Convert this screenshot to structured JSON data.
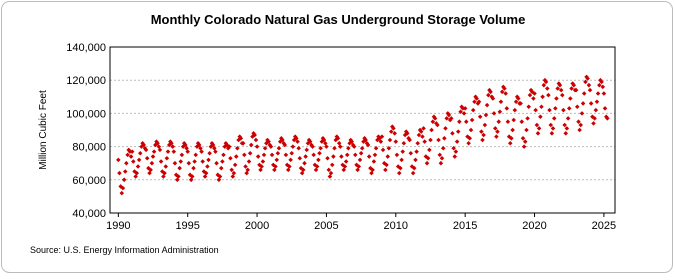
{
  "chart_data": {
    "type": "scatter",
    "title": "Monthly Colorado Natural Gas Underground Storage Volume",
    "y_label": "Million Cubic Feet",
    "source": "Source: U.S. Energy Information Administration",
    "color": "#cc0000",
    "grid": true,
    "xlim": [
      1989.4,
      2025.8
    ],
    "xticks": [
      1990,
      1995,
      2000,
      2005,
      2010,
      2015,
      2020,
      2025
    ],
    "ylim": [
      40000,
      140000
    ],
    "yticks": [
      {
        "value": 40000,
        "label": "40,000"
      },
      {
        "value": 60000,
        "label": "60,000"
      },
      {
        "value": 80000,
        "label": "80,000"
      },
      {
        "value": 100000,
        "label": "100,000"
      },
      {
        "value": 120000,
        "label": "120,000"
      },
      {
        "value": 140000,
        "label": "140,000"
      }
    ],
    "x": [
      1990,
      1990.08,
      1990.17,
      1990.25,
      1990.33,
      1990.42,
      1990.5,
      1990.58,
      1990.67,
      1990.75,
      1990.83,
      1990.92,
      1991,
      1991.08,
      1991.17,
      1991.25,
      1991.33,
      1991.42,
      1991.5,
      1991.58,
      1991.67,
      1991.75,
      1991.83,
      1991.92,
      1992,
      1992.08,
      1992.17,
      1992.25,
      1992.33,
      1992.42,
      1992.5,
      1992.58,
      1992.67,
      1992.75,
      1992.83,
      1992.92,
      1993,
      1993.08,
      1993.17,
      1993.25,
      1993.33,
      1993.42,
      1993.5,
      1993.58,
      1993.67,
      1993.75,
      1993.83,
      1993.92,
      1994,
      1994.08,
      1994.17,
      1994.25,
      1994.33,
      1994.42,
      1994.5,
      1994.58,
      1994.67,
      1994.75,
      1994.83,
      1994.92,
      1995,
      1995.08,
      1995.17,
      1995.25,
      1995.33,
      1995.42,
      1995.5,
      1995.58,
      1995.67,
      1995.75,
      1995.83,
      1995.92,
      1996,
      1996.08,
      1996.17,
      1996.25,
      1996.33,
      1996.42,
      1996.5,
      1996.58,
      1996.67,
      1996.75,
      1996.83,
      1996.92,
      1997,
      1997.08,
      1997.17,
      1997.25,
      1997.33,
      1997.42,
      1997.5,
      1997.58,
      1997.67,
      1997.75,
      1997.83,
      1997.92,
      1998,
      1998.08,
      1998.17,
      1998.25,
      1998.33,
      1998.42,
      1998.5,
      1998.58,
      1998.67,
      1998.75,
      1998.83,
      1998.92,
      1999,
      1999.08,
      1999.17,
      1999.25,
      1999.33,
      1999.42,
      1999.5,
      1999.58,
      1999.67,
      1999.75,
      1999.83,
      1999.92,
      2000,
      2000.08,
      2000.17,
      2000.25,
      2000.33,
      2000.42,
      2000.5,
      2000.58,
      2000.67,
      2000.75,
      2000.83,
      2000.92,
      2001,
      2001.08,
      2001.17,
      2001.25,
      2001.33,
      2001.42,
      2001.5,
      2001.58,
      2001.67,
      2001.75,
      2001.83,
      2001.92,
      2002,
      2002.08,
      2002.17,
      2002.25,
      2002.33,
      2002.42,
      2002.5,
      2002.58,
      2002.67,
      2002.75,
      2002.83,
      2002.92,
      2003,
      2003.08,
      2003.17,
      2003.25,
      2003.33,
      2003.42,
      2003.5,
      2003.58,
      2003.67,
      2003.75,
      2003.83,
      2003.92,
      2004,
      2004.08,
      2004.17,
      2004.25,
      2004.33,
      2004.42,
      2004.5,
      2004.58,
      2004.67,
      2004.75,
      2004.83,
      2004.92,
      2005,
      2005.08,
      2005.17,
      2005.25,
      2005.33,
      2005.42,
      2005.5,
      2005.58,
      2005.67,
      2005.75,
      2005.83,
      2005.92,
      2006,
      2006.08,
      2006.17,
      2006.25,
      2006.33,
      2006.42,
      2006.5,
      2006.58,
      2006.67,
      2006.75,
      2006.83,
      2006.92,
      2007,
      2007.08,
      2007.17,
      2007.25,
      2007.33,
      2007.42,
      2007.5,
      2007.58,
      2007.67,
      2007.75,
      2007.83,
      2007.92,
      2008,
      2008.08,
      2008.17,
      2008.25,
      2008.33,
      2008.42,
      2008.5,
      2008.58,
      2008.67,
      2008.75,
      2008.83,
      2008.92,
      2009,
      2009.08,
      2009.17,
      2009.25,
      2009.33,
      2009.42,
      2009.5,
      2009.58,
      2009.67,
      2009.75,
      2009.83,
      2009.92,
      2010,
      2010.08,
      2010.17,
      2010.25,
      2010.33,
      2010.42,
      2010.5,
      2010.58,
      2010.67,
      2010.75,
      2010.83,
      2010.92,
      2011,
      2011.08,
      2011.17,
      2011.25,
      2011.33,
      2011.42,
      2011.5,
      2011.58,
      2011.67,
      2011.75,
      2011.83,
      2011.92,
      2012,
      2012.08,
      2012.17,
      2012.25,
      2012.33,
      2012.42,
      2012.5,
      2012.58,
      2012.67,
      2012.75,
      2012.83,
      2012.92,
      2013,
      2013.08,
      2013.17,
      2013.25,
      2013.33,
      2013.42,
      2013.5,
      2013.58,
      2013.67,
      2013.75,
      2013.83,
      2013.92,
      2014,
      2014.08,
      2014.17,
      2014.25,
      2014.33,
      2014.42,
      2014.5,
      2014.58,
      2014.67,
      2014.75,
      2014.83,
      2014.92,
      2015,
      2015.08,
      2015.17,
      2015.25,
      2015.33,
      2015.42,
      2015.5,
      2015.58,
      2015.67,
      2015.75,
      2015.83,
      2015.92,
      2016,
      2016.08,
      2016.17,
      2016.25,
      2016.33,
      2016.42,
      2016.5,
      2016.58,
      2016.67,
      2016.75,
      2016.83,
      2016.92,
      2017,
      2017.08,
      2017.17,
      2017.25,
      2017.33,
      2017.42,
      2017.5,
      2017.58,
      2017.67,
      2017.75,
      2017.83,
      2017.92,
      2018,
      2018.08,
      2018.17,
      2018.25,
      2018.33,
      2018.42,
      2018.5,
      2018.58,
      2018.67,
      2018.75,
      2018.83,
      2018.92,
      2019,
      2019.08,
      2019.17,
      2019.25,
      2019.33,
      2019.42,
      2019.5,
      2019.58,
      2019.67,
      2019.75,
      2019.83,
      2019.92,
      2020,
      2020.08,
      2020.17,
      2020.25,
      2020.33,
      2020.42,
      2020.5,
      2020.58,
      2020.67,
      2020.75,
      2020.83,
      2020.92,
      2021,
      2021.08,
      2021.17,
      2021.25,
      2021.33,
      2021.42,
      2021.5,
      2021.58,
      2021.67,
      2021.75,
      2021.83,
      2021.92,
      2022,
      2022.08,
      2022.17,
      2022.25,
      2022.33,
      2022.42,
      2022.5,
      2022.58,
      2022.67,
      2022.75,
      2022.83,
      2022.92,
      2023,
      2023.08,
      2023.17,
      2023.25,
      2023.33,
      2023.42,
      2023.5,
      2023.58,
      2023.67,
      2023.75,
      2023.83,
      2023.92,
      2024,
      2024.08,
      2024.17,
      2024.25,
      2024.33,
      2024.42,
      2024.5,
      2024.58,
      2024.67,
      2024.75,
      2024.83,
      2024.92,
      2025,
      2025.08,
      2025.17,
      2025.25
    ],
    "values": [
      72000,
      64000,
      56000,
      52000,
      55000,
      60000,
      65000,
      70000,
      75000,
      78000,
      77000,
      74000,
      77000,
      71000,
      65000,
      62000,
      64000,
      68000,
      72000,
      76000,
      80000,
      82000,
      81000,
      79000,
      78000,
      73000,
      67000,
      64000,
      66000,
      70000,
      74000,
      77000,
      81000,
      83000,
      82000,
      80000,
      78000,
      71000,
      65000,
      62000,
      64000,
      68000,
      73000,
      77000,
      81000,
      83000,
      82000,
      80000,
      77000,
      70000,
      63000,
      60000,
      62000,
      67000,
      71000,
      75000,
      80000,
      82000,
      81000,
      79000,
      77000,
      70000,
      63000,
      60000,
      62000,
      67000,
      71000,
      75000,
      80000,
      82000,
      81000,
      79000,
      77000,
      71000,
      65000,
      62000,
      64000,
      68000,
      72000,
      76000,
      80000,
      82000,
      81000,
      79000,
      77000,
      70000,
      63000,
      60000,
      62000,
      67000,
      71000,
      75000,
      80000,
      82000,
      81000,
      79000,
      80000,
      73000,
      66000,
      62000,
      64000,
      69000,
      74000,
      79000,
      84000,
      86000,
      85000,
      82000,
      82000,
      75000,
      68000,
      64000,
      66000,
      71000,
      76000,
      81000,
      86000,
      88000,
      87000,
      84000,
      80000,
      74000,
      69000,
      66000,
      68000,
      71000,
      75000,
      79000,
      82000,
      84000,
      83000,
      81000,
      80000,
      75000,
      69000,
      66000,
      68000,
      72000,
      76000,
      79000,
      83000,
      85000,
      84000,
      82000,
      81000,
      75000,
      69000,
      66000,
      68000,
      72000,
      76000,
      80000,
      84000,
      86000,
      85000,
      83000,
      79000,
      73000,
      67000,
      64000,
      66000,
      70000,
      74000,
      78000,
      82000,
      84000,
      83000,
      81000,
      80000,
      75000,
      69000,
      66000,
      68000,
      72000,
      76000,
      79000,
      83000,
      85000,
      84000,
      82000,
      80000,
      73000,
      66000,
      62000,
      64000,
      69000,
      74000,
      79000,
      84000,
      86000,
      85000,
      82000,
      80000,
      74000,
      69000,
      66000,
      68000,
      71000,
      75000,
      79000,
      82000,
      84000,
      83000,
      81000,
      80000,
      75000,
      69000,
      66000,
      68000,
      72000,
      76000,
      79000,
      83000,
      85000,
      84000,
      82000,
      81000,
      74000,
      67000,
      64000,
      66000,
      71000,
      75000,
      79000,
      84000,
      86000,
      85000,
      83000,
      86000,
      78000,
      70000,
      66000,
      69000,
      74000,
      79000,
      84000,
      89000,
      92000,
      91000,
      88000,
      83000,
      75000,
      68000,
      64000,
      67000,
      72000,
      77000,
      82000,
      87000,
      89000,
      88000,
      85000,
      84000,
      76000,
      68000,
      64000,
      67000,
      72000,
      77000,
      82000,
      87000,
      90000,
      89000,
      86000,
      91000,
      83000,
      74000,
      70000,
      73000,
      78000,
      84000,
      90000,
      95000,
      98000,
      97000,
      94000,
      93000,
      84000,
      75000,
      70000,
      73000,
      79000,
      85000,
      91000,
      97000,
      100000,
      99000,
      96000,
      97000,
      88000,
      79000,
      74000,
      77000,
      83000,
      89000,
      95000,
      101000,
      104000,
      103000,
      100000,
      103000,
      95000,
      86000,
      82000,
      85000,
      90000,
      96000,
      102000,
      107000,
      110000,
      109000,
      106000,
      107000,
      98000,
      89000,
      84000,
      87000,
      93000,
      99000,
      105000,
      111000,
      114000,
      113000,
      110000,
      109000,
      100000,
      91000,
      86000,
      89000,
      95000,
      101000,
      107000,
      113000,
      116000,
      115000,
      112000,
      103000,
      95000,
      86000,
      82000,
      85000,
      90000,
      96000,
      102000,
      107000,
      110000,
      109000,
      106000,
      106000,
      95000,
      85000,
      80000,
      83000,
      90000,
      97000,
      104000,
      111000,
      114000,
      113000,
      109000,
      112000,
      102000,
      93000,
      88000,
      91000,
      98000,
      104000,
      110000,
      117000,
      120000,
      119000,
      115000,
      111000,
      102000,
      93000,
      88000,
      91000,
      97000,
      103000,
      109000,
      115000,
      118000,
      117000,
      114000,
      111000,
      102000,
      93000,
      88000,
      91000,
      97000,
      103000,
      109000,
      115000,
      118000,
      117000,
      114000,
      114000,
      104000,
      95000,
      90000,
      93000,
      100000,
      106000,
      112000,
      119000,
      122000,
      121000,
      117000,
      114000,
      106000,
      98000,
      94000,
      97000,
      102000,
      107000,
      112000,
      117000,
      120000,
      119000,
      116000,
      112000,
      103000,
      98000,
      97000
    ]
  }
}
